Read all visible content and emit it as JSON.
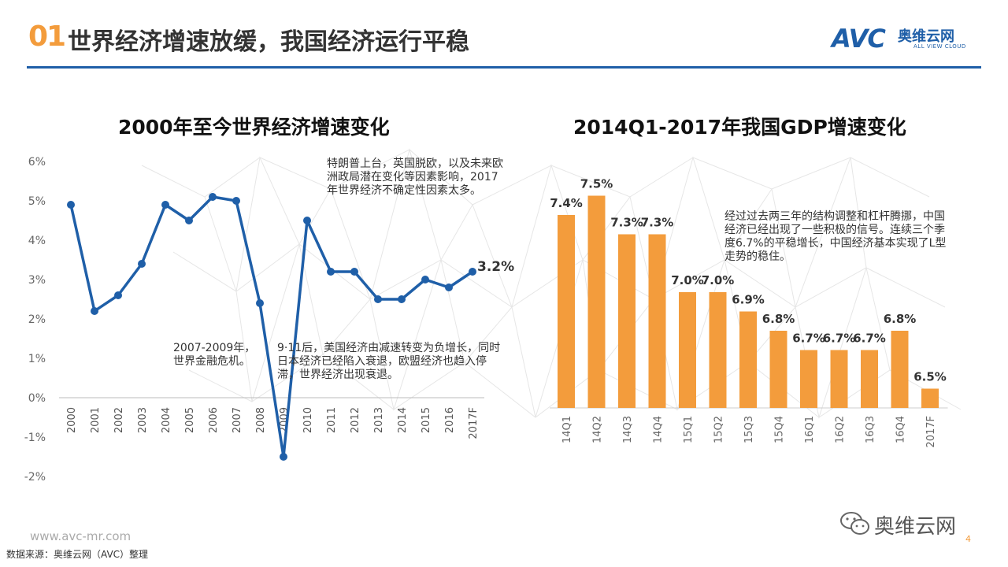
{
  "header": {
    "number": "01",
    "title": "世界经济增速放缓，我国经济运行平稳",
    "logo_mark": "AVC",
    "logo_cn": "奥维云网",
    "logo_en": "ALL VIEW CLOUD"
  },
  "colors": {
    "accent": "#f39c3c",
    "brand": "#1f5fa8",
    "line": "#1f5fa8",
    "bar": "#f39c3c"
  },
  "chart_data": [
    {
      "type": "line",
      "title": "2000年至今世界经济增速变化",
      "categories": [
        "2000",
        "2001",
        "2002",
        "2003",
        "2004",
        "2005",
        "2006",
        "2007",
        "2008",
        "2009",
        "2010",
        "2011",
        "2012",
        "2013",
        "2014",
        "2015",
        "2016",
        "2017F"
      ],
      "values": [
        4.9,
        2.2,
        2.6,
        3.4,
        4.9,
        4.5,
        5.1,
        5.0,
        2.4,
        -1.5,
        4.5,
        3.2,
        3.2,
        2.5,
        2.5,
        3.0,
        2.8,
        3.2
      ],
      "y_ticks": [
        "6%",
        "5%",
        "4%",
        "3%",
        "2%",
        "1%",
        "0%",
        "-1%",
        "-2%"
      ],
      "ylim": [
        -2,
        6
      ],
      "last_label": "3.2%",
      "annotations": [
        "特朗普上台，英国脱欧，以及未来欧洲政局潜在变化等因素影响，2017年世界经济不确定性因素太多。",
        "2007-2009年，世界金融危机。",
        "9·11后，美国经济由减速转变为负增长，同时日本经济已经陷入衰退，欧盟经济也趋入停滞，世界经济出现衰退。"
      ]
    },
    {
      "type": "bar",
      "title": "2014Q1-2017年我国GDP增速变化",
      "categories": [
        "14Q1",
        "14Q2",
        "14Q3",
        "14Q4",
        "15Q1",
        "15Q2",
        "15Q3",
        "15Q4",
        "16Q1",
        "16Q2",
        "16Q3",
        "16Q4",
        "2017F"
      ],
      "values": [
        7.4,
        7.5,
        7.3,
        7.3,
        7.0,
        7.0,
        6.9,
        6.8,
        6.7,
        6.7,
        6.7,
        6.8,
        6.5
      ],
      "labels": [
        "7.4%",
        "7.5%",
        "7.3%",
        "7.3%",
        "7.0%",
        "7.0%",
        "6.9%",
        "6.8%",
        "6.7%",
        "6.7%",
        "6.7%",
        "6.8%",
        "6.5%"
      ],
      "ylim": [
        6.4,
        7.6
      ],
      "annotations": [
        "经过过去两三年的结构调整和杠杆腾挪，中国经济已经出现了一些积极的信号。连续三个季度6.7%的平稳增长，中国经济基本实现了L型走势的稳住。"
      ]
    }
  ],
  "footer": {
    "url": "www.avc-mr.com",
    "source": "数据来源：奥维云网（AVC）整理",
    "watermark": "奥维云网",
    "page": "4"
  }
}
